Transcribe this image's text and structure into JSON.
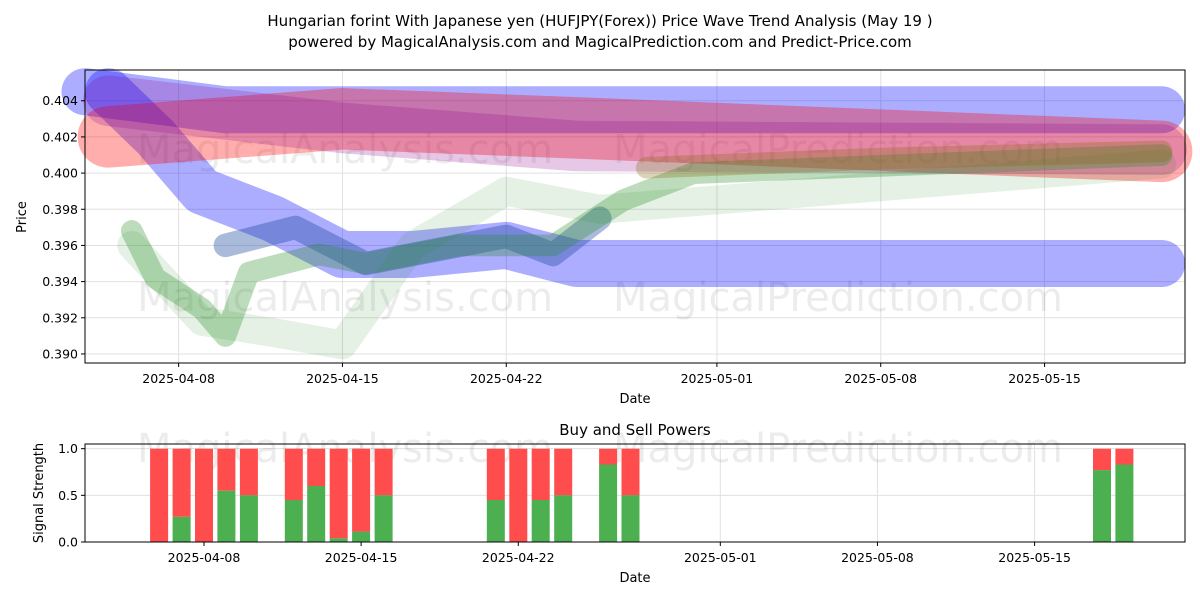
{
  "title_line1": "Hungarian forint With Japanese yen (HUFJPY(Forex)) Price Wave Trend Analysis (May 19 )",
  "title_line2": "powered by MagicalAnalysis.com and MagicalPrediction.com and Predict-Price.com",
  "watermarks": [
    "MagicalAnalysis.com",
    "MagicalPrediction.com"
  ],
  "chart_data": [
    {
      "type": "area",
      "title": "",
      "xlabel": "Date",
      "ylabel": "Price",
      "x_ticks": [
        "2025-04-08",
        "2025-04-15",
        "2025-04-22",
        "2025-05-01",
        "2025-05-08",
        "2025-05-15"
      ],
      "y_ticks": [
        "0.390",
        "0.392",
        "0.394",
        "0.396",
        "0.398",
        "0.400",
        "0.402",
        "0.404"
      ],
      "xlim": [
        "2025-04-04",
        "2025-05-21"
      ],
      "ylim": [
        0.3895,
        0.4057
      ],
      "grid": true,
      "series": [
        {
          "color": "#0000ff",
          "opacity": 0.32,
          "width": 0.0026,
          "points": [
            [
              "2025-04-05",
              0.4045
            ],
            [
              "2025-04-07",
              0.402
            ],
            [
              "2025-04-09",
              0.399
            ],
            [
              "2025-04-12",
              0.3975
            ],
            [
              "2025-04-15",
              0.3955
            ],
            [
              "2025-04-18",
              0.3955
            ],
            [
              "2025-04-22",
              0.396
            ],
            [
              "2025-04-25",
              0.395
            ],
            [
              "2025-05-20",
              0.395
            ]
          ]
        },
        {
          "color": "#0000ff",
          "opacity": 0.32,
          "width": 0.0026,
          "points": [
            [
              "2025-04-04",
              0.4045
            ],
            [
              "2025-04-10",
              0.4035
            ],
            [
              "2025-05-20",
              0.4035
            ]
          ]
        },
        {
          "color": "#ff0000",
          "opacity": 0.32,
          "width": 0.0034,
          "points": [
            [
              "2025-04-05",
              0.402
            ],
            [
              "2025-04-15",
              0.403
            ],
            [
              "2025-04-25",
              0.4025
            ],
            [
              "2025-05-20",
              0.4012
            ]
          ]
        },
        {
          "color": "#8b008b",
          "opacity": 0.22,
          "width": 0.0028,
          "points": [
            [
              "2025-04-05",
              0.404
            ],
            [
              "2025-04-15",
              0.4025
            ],
            [
              "2025-04-25",
              0.4015
            ],
            [
              "2025-05-20",
              0.4013
            ]
          ]
        },
        {
          "color": "#1c4aa0",
          "opacity": 0.38,
          "width": 0.0013,
          "points": [
            [
              "2025-04-10",
              0.396
            ],
            [
              "2025-04-13",
              0.397
            ],
            [
              "2025-04-16",
              0.395
            ],
            [
              "2025-04-22",
              0.3965
            ],
            [
              "2025-04-24",
              0.3955
            ],
            [
              "2025-04-26",
              0.3975
            ]
          ]
        },
        {
          "color": "#228b22",
          "opacity": 0.3,
          "width": 0.0012,
          "points": [
            [
              "2025-04-06",
              0.3968
            ],
            [
              "2025-04-07",
              0.3942
            ],
            [
              "2025-04-09",
              0.3925
            ],
            [
              "2025-04-10",
              0.391
            ],
            [
              "2025-04-11",
              0.3945
            ],
            [
              "2025-04-14",
              0.3955
            ],
            [
              "2025-04-16",
              0.395
            ],
            [
              "2025-04-20",
              0.396
            ],
            [
              "2025-04-24",
              0.396
            ],
            [
              "2025-04-27",
              0.3985
            ],
            [
              "2025-04-30",
              0.4
            ],
            [
              "2025-05-20",
              0.401
            ]
          ]
        },
        {
          "color": "#228b22",
          "opacity": 0.12,
          "width": 0.0016,
          "points": [
            [
              "2025-04-06",
              0.396
            ],
            [
              "2025-04-09",
              0.3918
            ],
            [
              "2025-04-12",
              0.3912
            ],
            [
              "2025-04-15",
              0.3905
            ],
            [
              "2025-04-18",
              0.396
            ],
            [
              "2025-04-22",
              0.399
            ],
            [
              "2025-04-26",
              0.398
            ],
            [
              "2025-05-20",
              0.4005
            ]
          ]
        },
        {
          "color": "#8b6914",
          "opacity": 0.3,
          "width": 0.0012,
          "points": [
            [
              "2025-04-28",
              0.4003
            ],
            [
              "2025-05-08",
              0.4008
            ],
            [
              "2025-05-20",
              0.4012
            ]
          ]
        }
      ]
    },
    {
      "type": "bar",
      "title": "Buy and Sell Powers",
      "xlabel": "Date",
      "ylabel": "Signal Strength",
      "x_ticks": [
        "2025-04-08",
        "2025-04-15",
        "2025-04-22",
        "2025-05-01",
        "2025-05-08",
        "2025-05-15"
      ],
      "y_ticks": [
        "0.0",
        "0.5",
        "1.0"
      ],
      "xlim": [
        "2025-04-04",
        "2025-05-21"
      ],
      "ylim": [
        0,
        1.05
      ],
      "grid": true,
      "buy_color": "#4caf50",
      "sell_color": "#ff4d4d",
      "bars": [
        {
          "date": "2025-04-06",
          "buy": 0.0
        },
        {
          "date": "2025-04-07",
          "buy": 0.27
        },
        {
          "date": "2025-04-08",
          "buy": 0.0
        },
        {
          "date": "2025-04-09",
          "buy": 0.55
        },
        {
          "date": "2025-04-10",
          "buy": 0.5
        },
        {
          "date": "2025-04-12",
          "buy": 0.45
        },
        {
          "date": "2025-04-13",
          "buy": 0.6
        },
        {
          "date": "2025-04-14",
          "buy": 0.04
        },
        {
          "date": "2025-04-15",
          "buy": 0.11
        },
        {
          "date": "2025-04-16",
          "buy": 0.5
        },
        {
          "date": "2025-04-21",
          "buy": 0.45
        },
        {
          "date": "2025-04-22",
          "buy": 0.0
        },
        {
          "date": "2025-04-23",
          "buy": 0.45
        },
        {
          "date": "2025-04-24",
          "buy": 0.5
        },
        {
          "date": "2025-04-26",
          "buy": 0.83
        },
        {
          "date": "2025-04-27",
          "buy": 0.5
        },
        {
          "date": "2025-05-18",
          "buy": 0.77
        },
        {
          "date": "2025-05-19",
          "buy": 0.83
        }
      ]
    }
  ]
}
